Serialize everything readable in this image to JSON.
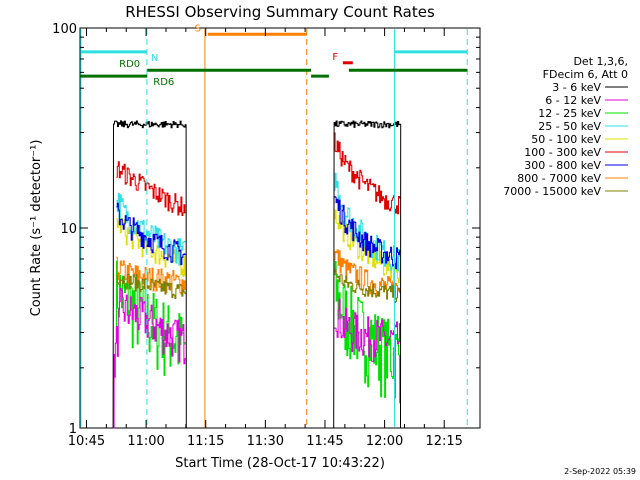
{
  "chart_data": {
    "type": "line",
    "title": "RHESSI Observing Summary Count Rates",
    "xlabel": "Start Time (28-Oct-17 10:43:22)",
    "ylabel": "Count Rate (s⁻¹ detector⁻¹)",
    "yscale": "log",
    "ylim": [
      1,
      100
    ],
    "xlim_min_after_1040": [
      3.37,
      104
    ],
    "x_ticks": [
      {
        "label": "10:45",
        "min": 5
      },
      {
        "label": "11:00",
        "min": 20
      },
      {
        "label": "11:15",
        "min": 35
      },
      {
        "label": "11:30",
        "min": 50
      },
      {
        "label": "11:45",
        "min": 65
      },
      {
        "label": "12:00",
        "min": 80
      },
      {
        "label": "12:15",
        "min": 95
      }
    ],
    "y_ticks": [
      {
        "label": "1",
        "value": 1
      },
      {
        "label": "10",
        "value": 10
      },
      {
        "label": "100",
        "value": 100
      }
    ],
    "legend": {
      "placement": "right",
      "header": [
        "Det 1,3,6,",
        "FDecim 6, Att 0"
      ],
      "entries": [
        {
          "label": "3 - 6 keV",
          "color": "#000000"
        },
        {
          "label": "6 - 12 keV",
          "color": "#e000e0"
        },
        {
          "label": "12 - 25 keV",
          "color": "#00e000"
        },
        {
          "label": "25 - 50 keV",
          "color": "#30e0e0"
        },
        {
          "label": "50 - 100 keV",
          "color": "#e0e000"
        },
        {
          "label": "100 - 300 keV",
          "color": "#e00000"
        },
        {
          "label": "300 - 800 keV",
          "color": "#0000e0"
        },
        {
          "label": "800 - 7000 keV",
          "color": "#ff8000"
        },
        {
          "label": "7000 - 15000 keV",
          "color": "#808000"
        }
      ]
    },
    "series": [
      {
        "name": "3 - 6 keV",
        "color": "#000000",
        "x": [
          11.7,
          11.8,
          30.0,
          30.1,
          67.2,
          67.3,
          83.9,
          84.0
        ],
        "y": [
          1,
          33,
          33,
          1,
          1,
          33,
          33,
          1
        ]
      },
      {
        "name": "6 - 12 keV",
        "color": "#e000e0",
        "x": [
          11.7,
          12.0,
          13.5,
          20,
          25,
          30,
          67.3,
          70,
          75,
          80,
          84
        ],
        "y": [
          1,
          2.2,
          4.0,
          3.5,
          3.0,
          2.7,
          4.0,
          3.2,
          2.9,
          2.8,
          2.7
        ]
      },
      {
        "name": "12 - 25 keV",
        "color": "#00e000",
        "x": [
          12.3,
          15,
          20,
          25,
          30,
          67.3,
          70,
          75,
          80,
          84
        ],
        "y": [
          5.0,
          4.5,
          3.6,
          3.0,
          2.6,
          5.0,
          3.8,
          3.0,
          2.5,
          2.3
        ]
      },
      {
        "name": "25 - 50 keV",
        "color": "#30e0e0",
        "x": [
          12.5,
          15,
          20,
          25,
          30,
          67.3,
          70,
          75,
          80,
          84
        ],
        "y": [
          14,
          11.5,
          9.5,
          8.2,
          7.5,
          18,
          12,
          9.0,
          7.5,
          6.8
        ]
      },
      {
        "name": "50 - 100 keV",
        "color": "#e0e000",
        "x": [
          12.5,
          15,
          20,
          25,
          30,
          67.3,
          70,
          75,
          80,
          84
        ],
        "y": [
          11,
          9.5,
          8.0,
          7.2,
          6.5,
          12,
          9.5,
          7.5,
          6.5,
          6.0
        ]
      },
      {
        "name": "100 - 300 keV",
        "color": "#e00000",
        "x": [
          12.5,
          15,
          20,
          25,
          30,
          67.3,
          70,
          75,
          80,
          84
        ],
        "y": [
          20,
          18.5,
          16,
          14,
          12.5,
          27,
          21,
          16.5,
          14,
          13
        ]
      },
      {
        "name": "300 - 800 keV",
        "color": "#0000e0",
        "x": [
          12.5,
          15,
          20,
          25,
          30,
          67.3,
          70,
          75,
          80,
          84
        ],
        "y": [
          12,
          10.5,
          9.0,
          8.0,
          7.3,
          14,
          11,
          8.5,
          7.5,
          7.0
        ]
      },
      {
        "name": "800 - 7000 keV",
        "color": "#ff8000",
        "x": [
          12.5,
          15,
          20,
          25,
          30,
          67.3,
          70,
          75,
          80,
          84
        ],
        "y": [
          6.3,
          6.0,
          5.7,
          5.5,
          5.3,
          7.5,
          6.3,
          5.5,
          5.1,
          4.9
        ]
      },
      {
        "name": "7000 - 15000 keV",
        "color": "#808000",
        "x": [
          12.5,
          15,
          20,
          25,
          30,
          67.3,
          70,
          75,
          80,
          84
        ],
        "y": [
          5.8,
          5.5,
          5.2,
          5.0,
          4.8,
          6.0,
          5.3,
          5.0,
          4.8,
          4.6
        ]
      }
    ],
    "vertical_lines": [
      {
        "min": 3.6,
        "color": "#30e0e0",
        "style": "solid"
      },
      {
        "min": 20.2,
        "color": "#30e0e0",
        "style": "dashed"
      },
      {
        "min": 34.8,
        "color": "#ff8000",
        "style": "solid"
      },
      {
        "min": 60.4,
        "color": "#ff8000",
        "style": "dashed"
      },
      {
        "min": 82.5,
        "color": "#30e0e0",
        "style": "solid"
      },
      {
        "min": 100.8,
        "color": "#30e0e0",
        "style": "dashed"
      }
    ],
    "flag_bars": [
      {
        "label": "N",
        "color": "#30e0e0",
        "y_value": 76,
        "segments": [
          [
            3.6,
            20.2
          ],
          [
            82.5,
            100.8
          ]
        ],
        "label_min": 21.2,
        "label_side": "right"
      },
      {
        "label": "S",
        "color": "#ff8000",
        "y_value": 93,
        "segments": [
          [
            35.5,
            60.4
          ]
        ],
        "label_min": 33.8,
        "label_side": "left"
      },
      {
        "label": "F",
        "color": "#e00000",
        "y_value": 67,
        "segments": [
          [
            69.5,
            72.0
          ]
        ],
        "label_min": 68.3,
        "label_side": "left"
      },
      {
        "label": "RD0",
        "color": "#007000",
        "y_value": 61.5,
        "segments": [
          [
            20.3,
            61.5
          ],
          [
            71.0,
            100.8
          ]
        ],
        "label_min": 18.5,
        "label_side": "left"
      },
      {
        "label": "RD6",
        "color": "#007000",
        "y_value": 57.5,
        "segments": [
          [
            3.4,
            20.3
          ],
          [
            61.5,
            66.0
          ]
        ],
        "label_min": 21.8,
        "label_side": "right"
      }
    ]
  },
  "footer": {
    "timestamp": "2-Sep-2022 05:39"
  }
}
